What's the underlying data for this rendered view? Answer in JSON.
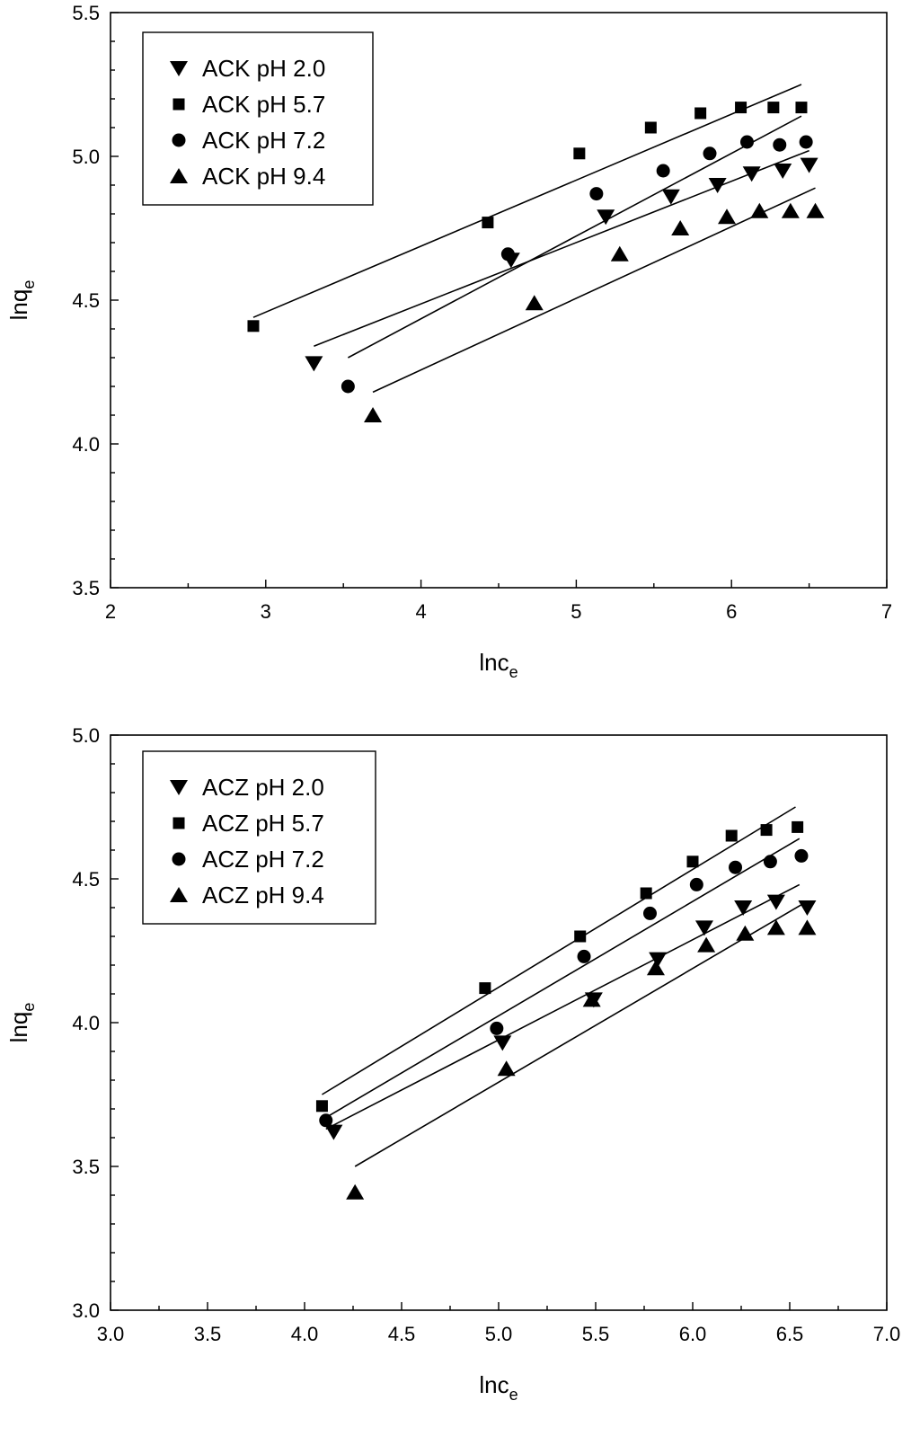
{
  "chart_data": [
    {
      "type": "scatter",
      "title": "",
      "xlabel": "lnc",
      "xlabel_sub": "e",
      "ylabel": "lnq",
      "ylabel_sub": "e",
      "xlim": [
        2,
        7
      ],
      "ylim": [
        3.5,
        5.5
      ],
      "xticks": [
        2,
        3,
        4,
        5,
        6,
        7
      ],
      "xtick_labels": [
        "2",
        "3",
        "4",
        "5",
        "6",
        "7"
      ],
      "yticks": [
        3.5,
        4.0,
        4.5,
        5.0,
        5.5
      ],
      "ytick_labels": [
        "3.5",
        "4.0",
        "4.5",
        "5.0",
        "5.5"
      ],
      "grid": false,
      "legend_position": "top-left",
      "series": [
        {
          "name": "ACK pH 2.0",
          "marker": "triangle-down",
          "x": [
            3.31,
            4.58,
            5.19,
            5.61,
            5.91,
            6.13,
            6.33,
            6.5
          ],
          "y": [
            4.28,
            4.64,
            4.79,
            4.86,
            4.9,
            4.94,
            4.95,
            4.97
          ],
          "fit": {
            "x": [
              3.31,
              6.5
            ],
            "y": [
              4.34,
              5.02
            ]
          }
        },
        {
          "name": "ACK pH 5.7",
          "marker": "square",
          "x": [
            2.92,
            4.43,
            5.02,
            5.48,
            5.8,
            6.06,
            6.27,
            6.45
          ],
          "y": [
            4.41,
            4.77,
            5.01,
            5.1,
            5.15,
            5.17,
            5.17,
            5.17
          ],
          "fit": {
            "x": [
              2.92,
              6.45
            ],
            "y": [
              4.44,
              5.25
            ]
          }
        },
        {
          "name": "ACK pH 7.2",
          "marker": "circle",
          "x": [
            3.53,
            4.56,
            5.13,
            5.56,
            5.86,
            6.1,
            6.31,
            6.48
          ],
          "y": [
            4.2,
            4.66,
            4.87,
            4.95,
            5.01,
            5.05,
            5.04,
            5.05
          ],
          "fit": {
            "x": [
              3.53,
              6.45
            ],
            "y": [
              4.3,
              5.14
            ]
          }
        },
        {
          "name": "ACK pH 9.4",
          "marker": "triangle-up",
          "x": [
            3.69,
            4.73,
            5.28,
            5.67,
            5.97,
            6.18,
            6.38,
            6.54
          ],
          "y": [
            4.1,
            4.49,
            4.66,
            4.75,
            4.79,
            4.81,
            4.81,
            4.81
          ],
          "fit": {
            "x": [
              3.69,
              6.54
            ],
            "y": [
              4.18,
              4.89
            ]
          }
        }
      ]
    },
    {
      "type": "scatter",
      "title": "",
      "xlabel": "lnc",
      "xlabel_sub": "e",
      "ylabel": "lnq",
      "ylabel_sub": "e",
      "xlim": [
        3.0,
        7.0
      ],
      "ylim": [
        3.0,
        5.0
      ],
      "xticks": [
        3.0,
        3.5,
        4.0,
        4.5,
        5.0,
        5.5,
        6.0,
        6.5,
        7.0
      ],
      "xtick_labels": [
        "3.0",
        "3.5",
        "4.0",
        "4.5",
        "5.0",
        "5.5",
        "6.0",
        "6.5",
        "7.0"
      ],
      "yticks": [
        3.0,
        3.5,
        4.0,
        4.5,
        5.0
      ],
      "ytick_labels": [
        "3.0",
        "3.5",
        "4.0",
        "4.5",
        "5.0"
      ],
      "grid": false,
      "legend_position": "top-left",
      "series": [
        {
          "name": "ACZ pH 2.0",
          "marker": "triangle-down",
          "x": [
            4.15,
            5.02,
            5.49,
            5.82,
            6.06,
            6.26,
            6.43,
            6.59
          ],
          "y": [
            3.62,
            3.93,
            4.08,
            4.22,
            4.33,
            4.4,
            4.42,
            4.4
          ],
          "fit": {
            "x": [
              4.11,
              6.55
            ],
            "y": [
              3.63,
              4.48
            ]
          }
        },
        {
          "name": "ACZ pH 5.7",
          "marker": "square",
          "x": [
            4.09,
            4.93,
            5.42,
            5.76,
            6.0,
            6.2,
            6.38,
            6.54
          ],
          "y": [
            3.71,
            4.12,
            4.3,
            4.45,
            4.56,
            4.65,
            4.67,
            4.68
          ],
          "fit": {
            "x": [
              4.09,
              6.53
            ],
            "y": [
              3.75,
              4.75
            ]
          }
        },
        {
          "name": "ACZ pH 7.2",
          "marker": "circle",
          "x": [
            4.11,
            4.99,
            5.44,
            5.78,
            6.02,
            6.22,
            6.4,
            6.56
          ],
          "y": [
            3.66,
            3.98,
            4.23,
            4.38,
            4.48,
            4.54,
            4.56,
            4.58
          ],
          "fit": {
            "x": [
              4.11,
              6.55
            ],
            "y": [
              3.67,
              4.64
            ]
          }
        },
        {
          "name": "ACZ pH 9.4",
          "marker": "triangle-up",
          "x": [
            4.26,
            5.04,
            5.48,
            5.81,
            6.07,
            6.27,
            6.43,
            6.59
          ],
          "y": [
            3.41,
            3.84,
            4.08,
            4.19,
            4.27,
            4.31,
            4.33,
            4.33
          ],
          "fit": {
            "x": [
              4.26,
              6.56
            ],
            "y": [
              3.5,
              4.41
            ]
          }
        }
      ]
    }
  ]
}
